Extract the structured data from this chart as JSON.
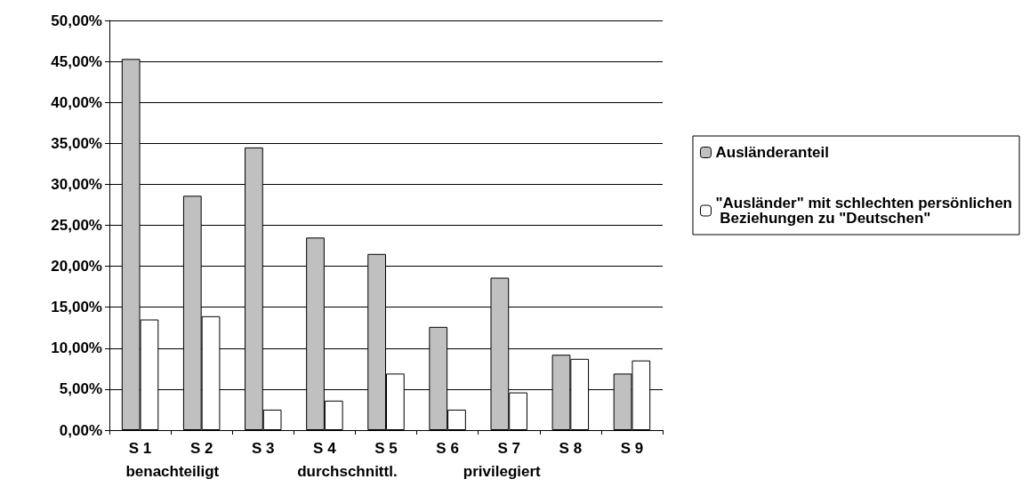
{
  "chart_data": {
    "type": "bar",
    "categories": [
      "S 1",
      "S 2",
      "S 3",
      "S 4",
      "S 5",
      "S 6",
      "S 7",
      "S 8",
      "S 9"
    ],
    "series": [
      {
        "name": "Ausländeranteil",
        "color": "#c0c0c0",
        "values": [
          45.3,
          28.6,
          34.5,
          23.5,
          21.5,
          12.6,
          18.6,
          9.2,
          6.9
        ]
      },
      {
        "name": "\"Ausländer\" mit schlechten persönlichen Beziehungen zu \"Deutschen\"",
        "color": "#ffffff",
        "values": [
          13.5,
          13.9,
          2.5,
          3.6,
          6.9,
          2.5,
          4.6,
          8.7,
          8.5
        ]
      }
    ],
    "ylim": [
      0,
      50
    ],
    "yticks": [
      {
        "value": 0,
        "label": "0,00%"
      },
      {
        "value": 5,
        "label": "5,00%"
      },
      {
        "value": 10,
        "label": "10,00%"
      },
      {
        "value": 15,
        "label": "15,00%"
      },
      {
        "value": 20,
        "label": "20,00%"
      },
      {
        "value": 25,
        "label": "25,00%"
      },
      {
        "value": 30,
        "label": "30,00%"
      },
      {
        "value": 35,
        "label": "35,00%"
      },
      {
        "value": 40,
        "label": "40,00%"
      },
      {
        "value": 45,
        "label": "45,00%"
      },
      {
        "value": 50,
        "label": "50,00%"
      }
    ],
    "annotations": [
      "benachteiligt",
      "durchschnittl.",
      "privilegiert"
    ],
    "grid": "y",
    "legend": "right"
  }
}
